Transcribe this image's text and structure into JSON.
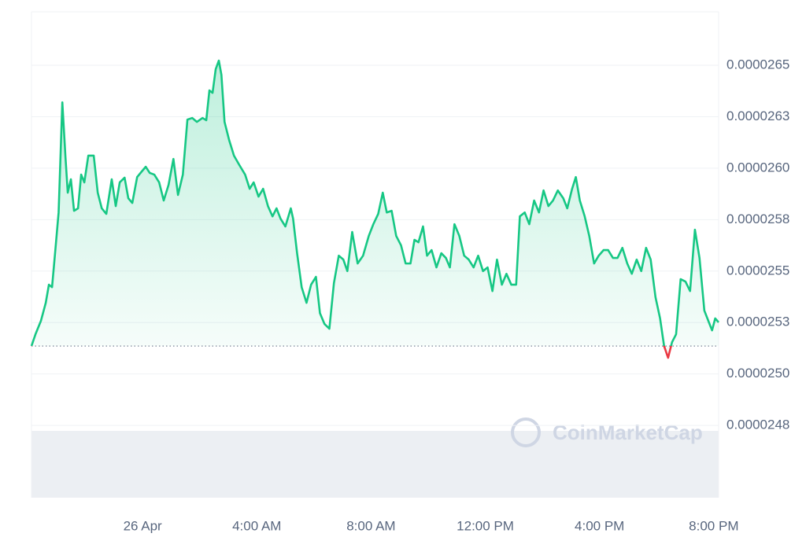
{
  "chart_data": {
    "type": "line",
    "watermark": "CoinMarketCap",
    "baseline": 2.5136e-05,
    "up_color": "#16c784",
    "down_color": "#ea3943",
    "xlim": [
      -3.89,
      20.17
    ],
    "xticks": [
      {
        "value": 0,
        "label": "26 Apr"
      },
      {
        "value": 4,
        "label": "4:00 AM"
      },
      {
        "value": 8,
        "label": "8:00 AM"
      },
      {
        "value": 12,
        "label": "12:00 PM"
      },
      {
        "value": 16,
        "label": "4:00 PM"
      },
      {
        "value": 20,
        "label": "8:00 PM"
      }
    ],
    "ylim": [
      2.4399e-05,
      2.676e-05
    ],
    "yticks": [
      {
        "value": 2.475e-05,
        "label": "0.0000248"
      },
      {
        "value": 2.5e-05,
        "label": "0.0000250"
      },
      {
        "value": 2.525e-05,
        "label": "0.0000253"
      },
      2.55e-05,
      {
        "value": 2.575e-05,
        "label": "0.0000258"
      },
      {
        "value": 2.6e-05,
        "label": "0.0000260"
      },
      {
        "value": 2.625e-05,
        "label": "0.0000263"
      },
      2.65e-05
    ],
    "grid": true,
    "x": [
      -3.89,
      -3.75,
      -3.56,
      -3.39,
      -3.28,
      -3.17,
      -3.06,
      -2.94,
      -2.81,
      -2.7,
      -2.62,
      -2.51,
      -2.4,
      -2.26,
      -2.15,
      -2.04,
      -1.9,
      -1.71,
      -1.57,
      -1.43,
      -1.27,
      -1.08,
      -0.94,
      -0.8,
      -0.63,
      -0.5,
      -0.36,
      -0.19,
      -0.03,
      0.11,
      0.25,
      0.41,
      0.58,
      0.74,
      0.91,
      1.08,
      1.24,
      1.41,
      1.57,
      1.74,
      1.9,
      2.1,
      2.23,
      2.34,
      2.45,
      2.56,
      2.67,
      2.76,
      2.87,
      3.03,
      3.2,
      3.39,
      3.59,
      3.75,
      3.89,
      4.06,
      4.22,
      4.39,
      4.55,
      4.69,
      4.83,
      5.0,
      5.19,
      5.27,
      5.41,
      5.57,
      5.74,
      5.9,
      6.07,
      6.21,
      6.37,
      6.54,
      6.7,
      6.87,
      7.03,
      7.17,
      7.34,
      7.53,
      7.72,
      7.92,
      8.08,
      8.25,
      8.41,
      8.55,
      8.72,
      8.88,
      9.05,
      9.21,
      9.38,
      9.52,
      9.66,
      9.82,
      9.96,
      10.12,
      10.29,
      10.46,
      10.62,
      10.76,
      10.92,
      11.09,
      11.26,
      11.42,
      11.59,
      11.75,
      11.92,
      12.08,
      12.25,
      12.41,
      12.58,
      12.74,
      12.91,
      13.08,
      13.21,
      13.38,
      13.54,
      13.71,
      13.88,
      14.04,
      14.21,
      14.37,
      14.54,
      14.73,
      14.87,
      15.04,
      15.17,
      15.31,
      15.48,
      15.64,
      15.81,
      15.97,
      16.14,
      16.3,
      16.47,
      16.63,
      16.8,
      16.97,
      17.13,
      17.3,
      17.46,
      17.63,
      17.79,
      17.96,
      18.12,
      18.26,
      18.4,
      18.54,
      18.68,
      18.84,
      19.01,
      19.17,
      19.34,
      19.5,
      19.67,
      19.83,
      19.94,
      20.05,
      20.17
    ],
    "values": [
      2.5136e-05,
      2.5193e-05,
      2.5258e-05,
      2.5346e-05,
      2.5434e-05,
      2.5422e-05,
      2.5594e-05,
      2.5785e-05,
      2.632e-05,
      2.6053e-05,
      2.5881e-05,
      2.5946e-05,
      2.5793e-05,
      2.5805e-05,
      2.5969e-05,
      2.5931e-05,
      2.6061e-05,
      2.6061e-05,
      2.5881e-05,
      2.5805e-05,
      2.5778e-05,
      2.5946e-05,
      2.5816e-05,
      2.5931e-05,
      2.5954e-05,
      2.5854e-05,
      2.5831e-05,
      2.5957e-05,
      2.5984e-05,
      2.6007e-05,
      2.5977e-05,
      2.5969e-05,
      2.5931e-05,
      2.5843e-05,
      2.5919e-05,
      2.6045e-05,
      2.587e-05,
      2.5969e-05,
      2.6236e-05,
      2.6244e-05,
      2.6225e-05,
      2.6244e-05,
      2.6233e-05,
      2.6378e-05,
      2.6366e-05,
      2.6481e-05,
      2.6523e-05,
      2.6454e-05,
      2.6225e-05,
      2.6137e-05,
      2.6061e-05,
      2.6015e-05,
      2.5969e-05,
      2.59e-05,
      2.5931e-05,
      2.5862e-05,
      2.59e-05,
      2.5816e-05,
      2.5766e-05,
      2.5805e-05,
      2.5755e-05,
      2.5717e-05,
      2.5805e-05,
      2.5755e-05,
      2.5587e-05,
      2.5422e-05,
      2.5346e-05,
      2.5434e-05,
      2.5472e-05,
      2.5296e-05,
      2.5243e-05,
      2.522e-05,
      2.5442e-05,
      2.5575e-05,
      2.5556e-05,
      2.55e-05,
      2.569e-05,
      2.5537e-05,
      2.5575e-05,
      2.5671e-05,
      2.5728e-05,
      2.5778e-05,
      2.5881e-05,
      2.5785e-05,
      2.5793e-05,
      2.5671e-05,
      2.5625e-05,
      2.5537e-05,
      2.5537e-05,
      2.5652e-05,
      2.564e-05,
      2.5717e-05,
      2.5575e-05,
      2.5602e-05,
      2.5518e-05,
      2.5587e-05,
      2.5564e-05,
      2.5518e-05,
      2.5728e-05,
      2.5671e-05,
      2.5575e-05,
      2.5556e-05,
      2.5518e-05,
      2.5575e-05,
      2.55e-05,
      2.5518e-05,
      2.5403e-05,
      2.5556e-05,
      2.5434e-05,
      2.5487e-05,
      2.5434e-05,
      2.5434e-05,
      2.5766e-05,
      2.5785e-05,
      2.5728e-05,
      2.5843e-05,
      2.5785e-05,
      2.5892e-05,
      2.5816e-05,
      2.5843e-05,
      2.5892e-05,
      2.5854e-05,
      2.5805e-05,
      2.59e-05,
      2.5957e-05,
      2.5843e-05,
      2.5766e-05,
      2.5671e-05,
      2.5537e-05,
      2.5575e-05,
      2.5602e-05,
      2.5602e-05,
      2.5564e-05,
      2.5564e-05,
      2.5613e-05,
      2.5537e-05,
      2.5487e-05,
      2.5556e-05,
      2.55e-05,
      2.5613e-05,
      2.5556e-05,
      2.5373e-05,
      2.527e-05,
      2.5136e-05,
      2.5079e-05,
      2.5155e-05,
      2.5193e-05,
      2.5461e-05,
      2.5449e-05,
      2.5403e-05,
      2.5701e-05,
      2.5564e-05,
      2.5308e-05,
      2.5251e-05,
      2.5212e-05,
      2.527e-05,
      2.5251e-05
    ]
  }
}
